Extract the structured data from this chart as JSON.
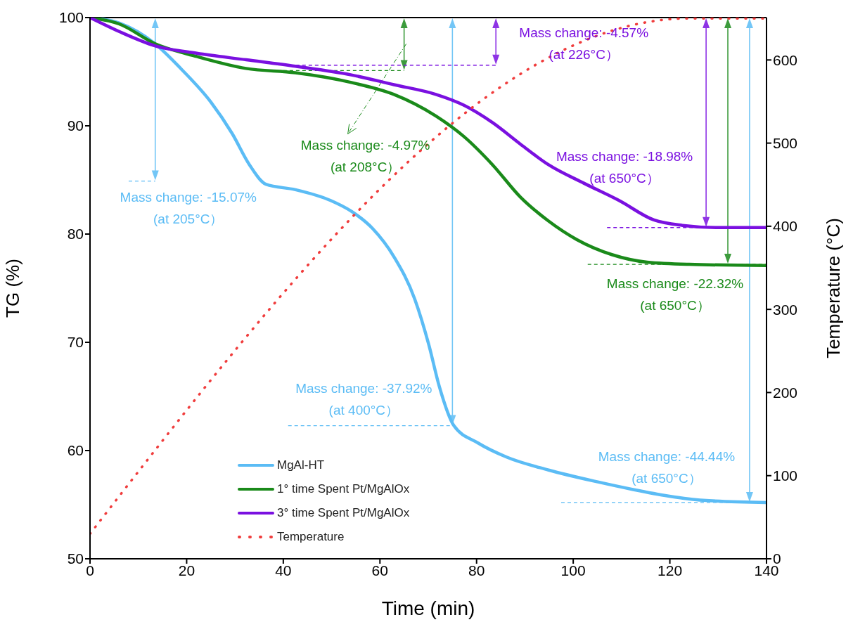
{
  "chart_data": {
    "type": "line",
    "xlabel": "Time (min)",
    "ylabel": "TG (%)",
    "y2label": "Temperature (°C)",
    "xlim": [
      0,
      140
    ],
    "xticks": [
      0,
      20,
      40,
      60,
      80,
      100,
      120,
      140
    ],
    "ylim": [
      50,
      100
    ],
    "yticks": [
      50,
      60,
      70,
      80,
      90,
      100
    ],
    "y2lim": [
      0,
      651
    ],
    "y2ticks": [
      0,
      100,
      200,
      300,
      400,
      500,
      600
    ],
    "legend": "bottom left",
    "grid": false,
    "marker": "none",
    "series": [
      {
        "name": "MgAl-HT",
        "color": "#5bbcf5",
        "line_style": "solid",
        "x": [
          0,
          6,
          13.4,
          19.2,
          25,
          29.4,
          33,
          36.4,
          42.5,
          49.8,
          54.1,
          58.5,
          62.9,
          67.2,
          70.1,
          72.3,
          75.3,
          80.3,
          86.2,
          94.9,
          105.1,
          112.4,
          119.7,
          126.9,
          140
        ],
        "values": [
          100,
          99.5,
          97.6,
          95.1,
          92.2,
          89.3,
          86.4,
          84.6,
          84.1,
          83.1,
          82.1,
          80.5,
          77.9,
          74.0,
          69.8,
          65.9,
          62.3,
          60.7,
          59.4,
          58.2,
          57.1,
          56.4,
          55.8,
          55.4,
          55.2
        ]
      },
      {
        "name": "1° time Spent Pt/MgAlOx",
        "color": "#1a8a1a",
        "line_style": "solid",
        "x": [
          0,
          6.1,
          13.4,
          22.1,
          32.3,
          42.5,
          54.1,
          62.9,
          71.6,
          77.4,
          83.3,
          89.1,
          94.9,
          100.7,
          108,
          115.3,
          124,
          140
        ],
        "values": [
          100,
          99.4,
          97.6,
          96.4,
          95.3,
          94.9,
          94.0,
          92.9,
          90.9,
          89.0,
          86.4,
          83.4,
          81.2,
          79.5,
          78.1,
          77.4,
          77.2,
          77.1
        ]
      },
      {
        "name": "3° time Spent Pt/MgAlOx",
        "color": "#7a10e0",
        "line_style": "solid",
        "x": [
          0,
          6.1,
          13.4,
          22.1,
          32.3,
          42.5,
          54.1,
          62.9,
          71.6,
          77.4,
          83.3,
          89.1,
          94.9,
          102.2,
          109.5,
          116.7,
          122.6,
          129.8,
          140
        ],
        "values": [
          100,
          98.7,
          97.4,
          96.7,
          96.1,
          95.5,
          94.7,
          93.8,
          92.9,
          91.9,
          90.3,
          88.3,
          86.4,
          84.7,
          83.1,
          81.3,
          80.8,
          80.6,
          80.6
        ]
      },
      {
        "name": "Temperature",
        "color": "#f03c3c",
        "line_style": "dotted",
        "axis": "y2",
        "x": [
          0,
          124,
          140
        ],
        "values": [
          30,
          650,
          650
        ]
      }
    ],
    "annotations": [
      "Mass change: -15.07%\n(at 205°C）",
      "Mass change: -4.97%\n(at 208°C）",
      "Mass change: -4.57%\n(at 226°C）",
      "Mass change: -18.98%\n(at 650°C）",
      "Mass change: -22.32%\n(at 650°C）",
      "Mass change: -37.92%\n(at 400°C）",
      "Mass change: -44.44%\n(at 650°C）"
    ]
  }
}
